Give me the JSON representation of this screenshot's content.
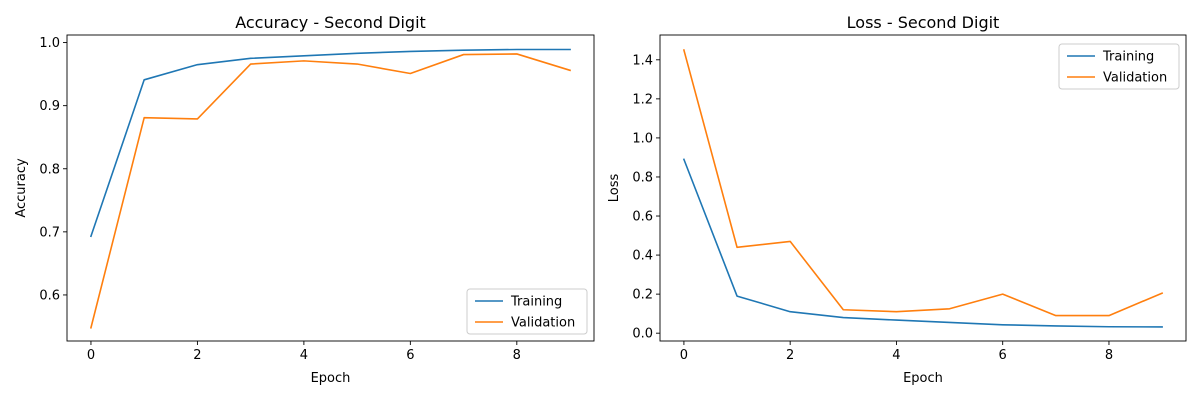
{
  "chart_data": [
    {
      "type": "line",
      "title": "Accuracy - Second Digit",
      "xlabel": "Epoch",
      "ylabel": "Accuracy",
      "x": [
        0,
        1,
        2,
        3,
        4,
        5,
        6,
        7,
        8,
        9
      ],
      "xlim": [
        -0.45,
        9.45
      ],
      "ylim": [
        0.527,
        1.012
      ],
      "xticks": [
        0,
        2,
        4,
        6,
        8
      ],
      "yticks": [
        0.6,
        0.7,
        0.8,
        0.9,
        1.0
      ],
      "ytick_labels": [
        "0.6",
        "0.7",
        "0.8",
        "0.9",
        "1.0"
      ],
      "legend": "lower right",
      "grid": false,
      "series": [
        {
          "name": "Training",
          "color": "#1f77b4",
          "values": [
            0.693,
            0.941,
            0.965,
            0.975,
            0.979,
            0.983,
            0.986,
            0.988,
            0.989,
            0.989
          ]
        },
        {
          "name": "Validation",
          "color": "#ff7f0e",
          "values": [
            0.548,
            0.881,
            0.879,
            0.966,
            0.971,
            0.966,
            0.951,
            0.981,
            0.982,
            0.956
          ]
        }
      ]
    },
    {
      "type": "line",
      "title": "Loss - Second Digit",
      "xlabel": "Epoch",
      "ylabel": "Loss",
      "x": [
        0,
        1,
        2,
        3,
        4,
        5,
        6,
        7,
        8,
        9
      ],
      "xlim": [
        -0.45,
        9.45
      ],
      "ylim": [
        -0.04,
        1.527
      ],
      "xticks": [
        0,
        2,
        4,
        6,
        8
      ],
      "yticks": [
        0.0,
        0.2,
        0.4,
        0.6,
        0.8,
        1.0,
        1.2,
        1.4
      ],
      "ytick_labels": [
        "0.0",
        "0.2",
        "0.4",
        "0.6",
        "0.8",
        "1.0",
        "1.2",
        "1.4"
      ],
      "legend": "upper right",
      "grid": false,
      "series": [
        {
          "name": "Training",
          "color": "#1f77b4",
          "values": [
            0.89,
            0.19,
            0.11,
            0.08,
            0.067,
            0.055,
            0.043,
            0.037,
            0.033,
            0.032
          ]
        },
        {
          "name": "Validation",
          "color": "#ff7f0e",
          "values": [
            1.45,
            0.44,
            0.47,
            0.12,
            0.11,
            0.125,
            0.2,
            0.09,
            0.09,
            0.205
          ]
        }
      ]
    }
  ]
}
